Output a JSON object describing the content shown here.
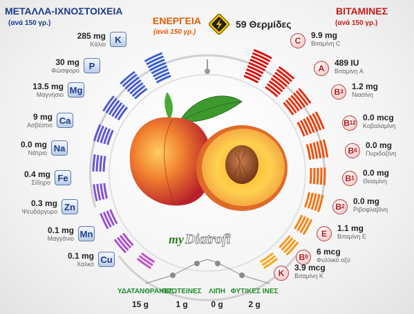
{
  "minerals": {
    "title": "ΜΕΤΑΛΛΑ-ΙΧΝΟΣΤΟΙΧΕΙΑ",
    "subtitle": "(ανά 150 γρ.)",
    "items": [
      {
        "symbol": "K",
        "value": "285 mg",
        "label": "Κάλιο"
      },
      {
        "symbol": "P",
        "value": "30 mg",
        "label": "Φώσφορο"
      },
      {
        "symbol": "Mg",
        "value": "13.5 mg",
        "label": "Μαγνήσιο"
      },
      {
        "symbol": "Ca",
        "value": "9 mg",
        "label": "Ασβέστιο"
      },
      {
        "symbol": "Na",
        "value": "0.0 mg",
        "label": "Νάτριο"
      },
      {
        "symbol": "Fe",
        "value": "0.4 mg",
        "label": "Σίδηρο"
      },
      {
        "symbol": "Zn",
        "value": "0.3 mg",
        "label": "Ψευδάργυρο"
      },
      {
        "symbol": "Mn",
        "value": "0.1 mg",
        "label": "Μαγγάνιο"
      },
      {
        "symbol": "Cu",
        "value": "0.1 mg",
        "label": "Χαλκό"
      }
    ]
  },
  "energy": {
    "title": "ΕΝΕΡΓΕΙΑ",
    "subtitle": "(ανά 150 γρ.)",
    "value": "59 Θερμίδες",
    "icon": "lightning-icon"
  },
  "vitamins": {
    "title": "ΒΙΤΑΜΙΝΕΣ",
    "subtitle": "(ανά 150 γρ.)",
    "items": [
      {
        "symbol": "C",
        "sub": "",
        "value": "9.9 mg",
        "label": "Βιταμίνη C"
      },
      {
        "symbol": "A",
        "sub": "",
        "value": "489 IU",
        "label": "Βιταμίνη A"
      },
      {
        "symbol": "B",
        "sub": "3",
        "value": "1.2 mg",
        "label": "Νιασίνη"
      },
      {
        "symbol": "B",
        "sub": "12",
        "value": "0.0 mcg",
        "label": "Κοβαλαμίνη"
      },
      {
        "symbol": "B",
        "sub": "6",
        "value": "0.0 mg",
        "label": "Πυριδοξίνη"
      },
      {
        "symbol": "B",
        "sub": "1",
        "value": "0.0 mg",
        "label": "Θειαμίνη"
      },
      {
        "symbol": "B",
        "sub": "2",
        "value": "0.0 mg",
        "label": "Ριβοφλαβίνη"
      },
      {
        "symbol": "E",
        "sub": "",
        "value": "1.1 mg",
        "label": "Βιταμίνη E"
      },
      {
        "symbol": "B",
        "sub": "9",
        "value": "6 mcg",
        "label": "Φυλλικό οξύ"
      },
      {
        "symbol": "K",
        "sub": "",
        "value": "3.9 mcg",
        "label": "Βιταμίνη K"
      }
    ]
  },
  "macros": [
    {
      "label": "ΥΔΑΤΑΝΘΡΑΚΕΣ",
      "value": "15 g"
    },
    {
      "label": "ΠΡΩΤΕΙΝΕΣ",
      "value": "1 g"
    },
    {
      "label": "ΛΙΠΗ",
      "value": "0 g"
    },
    {
      "label": "ΦΥΤΙΚΕΣ ΙΝΕΣ",
      "value": "2 g"
    }
  ],
  "logo": "myDiatrofi",
  "colors": {
    "minerals_title": "#1a3a8a",
    "vitamins_title": "#c81818",
    "energy_title": "#e85a00",
    "macro_label": "#1f8a2a",
    "mineral_bar_gradient": [
      "#3a5fd0",
      "#6c55d0",
      "#c050c8"
    ],
    "vitamin_bar_gradient": [
      "#d81010",
      "#f05a10",
      "#f8a818"
    ]
  }
}
